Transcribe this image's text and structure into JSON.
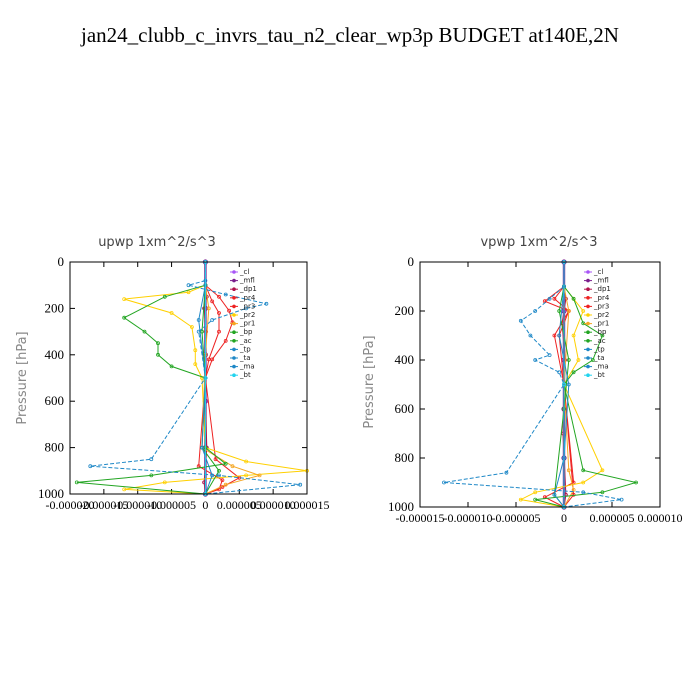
{
  "page_title": "jan24_clubb_c_invrs_tau_n2_clear_wp3p  BUDGET at140E,2N",
  "legend_names": [
    "_cl",
    "_mfl",
    "_dp1",
    "_pr4",
    "_pr3",
    "_pr2",
    "_pr1",
    "_bp",
    "_ac",
    "_tp",
    "_ta",
    "_ma",
    "_bt"
  ],
  "series_colors": [
    "#a855f7",
    "#7a1e8c",
    "#b0124a",
    "#ee2222",
    "#ee2222",
    "#ffd000",
    "#f5a623",
    "#22a522",
    "#22a522",
    "#1e88c7",
    "#1e88c7",
    "#1e88c7",
    "#22d3ee"
  ],
  "chart_data": [
    {
      "type": "line",
      "title": "upwp   1xm^2/s^3",
      "ylabel": "Pressure  [hPa]",
      "xlim": [
        -2e-05,
        1.5e-05
      ],
      "ylim": [
        1000,
        0
      ],
      "y_ticks": [
        "0",
        "200",
        "400",
        "600",
        "800",
        "1000"
      ],
      "x_ticks": [
        "-0.000020",
        "-0.000015",
        "-0.000010",
        "-0.000005",
        "0",
        "0.000005",
        "0.000010",
        "0.000015"
      ],
      "series": [
        {
          "name": "_cl",
          "x": [
            0,
            0,
            0,
            0,
            0,
            0
          ],
          "y": [
            0,
            200,
            400,
            600,
            800,
            1000
          ]
        },
        {
          "name": "_mfl",
          "x": [
            0,
            0,
            0,
            0,
            0,
            0
          ],
          "y": [
            0,
            200,
            400,
            600,
            800,
            1000
          ]
        },
        {
          "name": "_dp1",
          "x": [
            0,
            2e-07,
            -2e-07,
            1e-07,
            -1e-07,
            2e-07,
            -2e-07,
            0
          ],
          "y": [
            100,
            150,
            200,
            300,
            500,
            800,
            950,
            1000
          ]
        },
        {
          "name": "_pr4",
          "x": [
            0,
            2e-06,
            3.5e-06,
            4e-06,
            3e-06,
            1e-06,
            0,
            1.5e-06,
            5e-06,
            2.5e-06,
            0
          ],
          "y": [
            100,
            150,
            210,
            260,
            340,
            420,
            500,
            850,
            930,
            970,
            1000
          ]
        },
        {
          "name": "_pr3",
          "x": [
            0,
            1e-06,
            2e-06,
            2e-06,
            5e-07,
            0,
            -1e-06,
            2.5e-06,
            2e-06,
            0
          ],
          "y": [
            100,
            170,
            220,
            300,
            420,
            500,
            880,
            940,
            980,
            1000
          ]
        },
        {
          "name": "_pr2",
          "x": [
            0,
            -2.5e-06,
            -1.2e-05,
            -5e-06,
            -2e-06,
            -1.5e-06,
            -1.5e-06,
            -5e-07,
            0,
            6e-06,
            1.5e-05,
            6e-06,
            -6e-06,
            -1.2e-05,
            0
          ],
          "y": [
            100,
            130,
            160,
            220,
            280,
            380,
            440,
            500,
            800,
            860,
            900,
            920,
            950,
            980,
            1000
          ]
        },
        {
          "name": "_pr1",
          "x": [
            0,
            5e-07,
            0,
            -5e-07,
            4e-06,
            8e-06,
            3e-06,
            0
          ],
          "y": [
            100,
            200,
            400,
            800,
            880,
            920,
            960,
            1000
          ]
        },
        {
          "name": "_bp",
          "x": [
            0,
            -6e-06,
            -1.2e-05,
            -9e-06,
            -7e-06,
            -7e-06,
            -5e-06,
            0,
            0,
            3e-06,
            -8e-06,
            -1.9e-05,
            0
          ],
          "y": [
            100,
            150,
            240,
            300,
            350,
            400,
            450,
            500,
            800,
            870,
            920,
            950,
            1000
          ]
        },
        {
          "name": "_ac",
          "x": [
            0,
            -5e-07,
            0,
            -5e-07,
            2e-06,
            0
          ],
          "y": [
            100,
            300,
            500,
            800,
            900,
            1000
          ]
        },
        {
          "name": "_tp",
          "x": [
            0,
            -2.5e-06,
            3e-06,
            9e-06,
            6e-06,
            1e-06,
            -1e-06,
            0,
            -8e-06,
            -1.7e-05,
            2e-06,
            1.4e-05,
            0
          ],
          "y": [
            80,
            100,
            140,
            180,
            200,
            250,
            300,
            500,
            850,
            880,
            920,
            960,
            1000
          ]
        },
        {
          "name": "_ta",
          "x": [
            0,
            -1e-06,
            0,
            -5e-07,
            1e-06,
            0
          ],
          "y": [
            100,
            250,
            500,
            800,
            920,
            1000
          ]
        },
        {
          "name": "_ma",
          "x": [
            0,
            0,
            0
          ],
          "y": [
            0,
            500,
            1000
          ]
        },
        {
          "name": "_bt",
          "x": [
            0,
            0,
            0
          ],
          "y": [
            0,
            500,
            1000
          ]
        }
      ]
    },
    {
      "type": "line",
      "title": "vpwp   1xm^2/s^3",
      "ylabel": "Pressure  [hPa]",
      "xlim": [
        -1.5e-05,
        1e-05
      ],
      "ylim": [
        1000,
        0
      ],
      "y_ticks": [
        "0",
        "200",
        "400",
        "600",
        "800",
        "1000"
      ],
      "x_ticks": [
        "-0.000015",
        "-0.000010",
        "-0.000005",
        "0",
        "0.000005",
        "0.000010"
      ],
      "series": [
        {
          "name": "_cl",
          "x": [
            0,
            0,
            0,
            0,
            0,
            0
          ],
          "y": [
            0,
            200,
            400,
            600,
            800,
            1000
          ]
        },
        {
          "name": "_mfl",
          "x": [
            0,
            0,
            0,
            0,
            0,
            0
          ],
          "y": [
            0,
            200,
            400,
            600,
            800,
            1000
          ]
        },
        {
          "name": "_dp1",
          "x": [
            0,
            2e-07,
            -2e-07,
            1e-07,
            -1e-07,
            2e-07,
            0
          ],
          "y": [
            100,
            150,
            250,
            400,
            700,
            950,
            1000
          ]
        },
        {
          "name": "_pr4",
          "x": [
            0,
            -1e-06,
            5e-07,
            -5e-07,
            0,
            1e-06,
            -2e-06,
            0
          ],
          "y": [
            100,
            150,
            200,
            300,
            500,
            900,
            960,
            1000
          ]
        },
        {
          "name": "_pr3",
          "x": [
            0,
            -2e-06,
            5e-07,
            -1e-06,
            0,
            1e-06,
            0
          ],
          "y": [
            100,
            160,
            200,
            300,
            500,
            950,
            1000
          ]
        },
        {
          "name": "_pr2",
          "x": [
            0,
            1e-06,
            2e-06,
            1e-06,
            1.5e-06,
            0,
            4e-06,
            2e-06,
            -3e-06,
            -4.5e-06,
            0
          ],
          "y": [
            100,
            150,
            200,
            300,
            400,
            500,
            850,
            900,
            940,
            970,
            1000
          ]
        },
        {
          "name": "_pr1",
          "x": [
            0,
            5e-07,
            0,
            5e-07,
            1e-06,
            0
          ],
          "y": [
            100,
            200,
            500,
            850,
            930,
            1000
          ]
        },
        {
          "name": "_bp",
          "x": [
            0,
            1e-06,
            2e-06,
            4e-06,
            3e-06,
            1e-06,
            0,
            2e-06,
            7.5e-06,
            4e-06,
            -3e-06,
            0
          ],
          "y": [
            100,
            150,
            250,
            300,
            400,
            450,
            500,
            850,
            900,
            940,
            970,
            1000
          ]
        },
        {
          "name": "_ac",
          "x": [
            0,
            -5e-07,
            5e-07,
            0,
            -1e-06,
            0
          ],
          "y": [
            100,
            200,
            400,
            600,
            950,
            1000
          ]
        },
        {
          "name": "_tp",
          "x": [
            0,
            -1.5e-06,
            -3e-06,
            -4.5e-06,
            -3.5e-06,
            -1.5e-06,
            -3e-06,
            -5e-07,
            0,
            -6e-06,
            -1.25e-05,
            2e-06,
            6e-06,
            0
          ],
          "y": [
            100,
            150,
            200,
            240,
            300,
            380,
            400,
            450,
            500,
            860,
            900,
            940,
            970,
            1000
          ]
        },
        {
          "name": "_ta",
          "x": [
            0,
            -5e-07,
            5e-07,
            0,
            -1e-06,
            0
          ],
          "y": [
            100,
            300,
            500,
            800,
            950,
            1000
          ]
        },
        {
          "name": "_ma",
          "x": [
            0,
            0,
            0
          ],
          "y": [
            0,
            500,
            1000
          ]
        },
        {
          "name": "_bt",
          "x": [
            0,
            0,
            0
          ],
          "y": [
            0,
            500,
            1000
          ]
        }
      ]
    }
  ]
}
